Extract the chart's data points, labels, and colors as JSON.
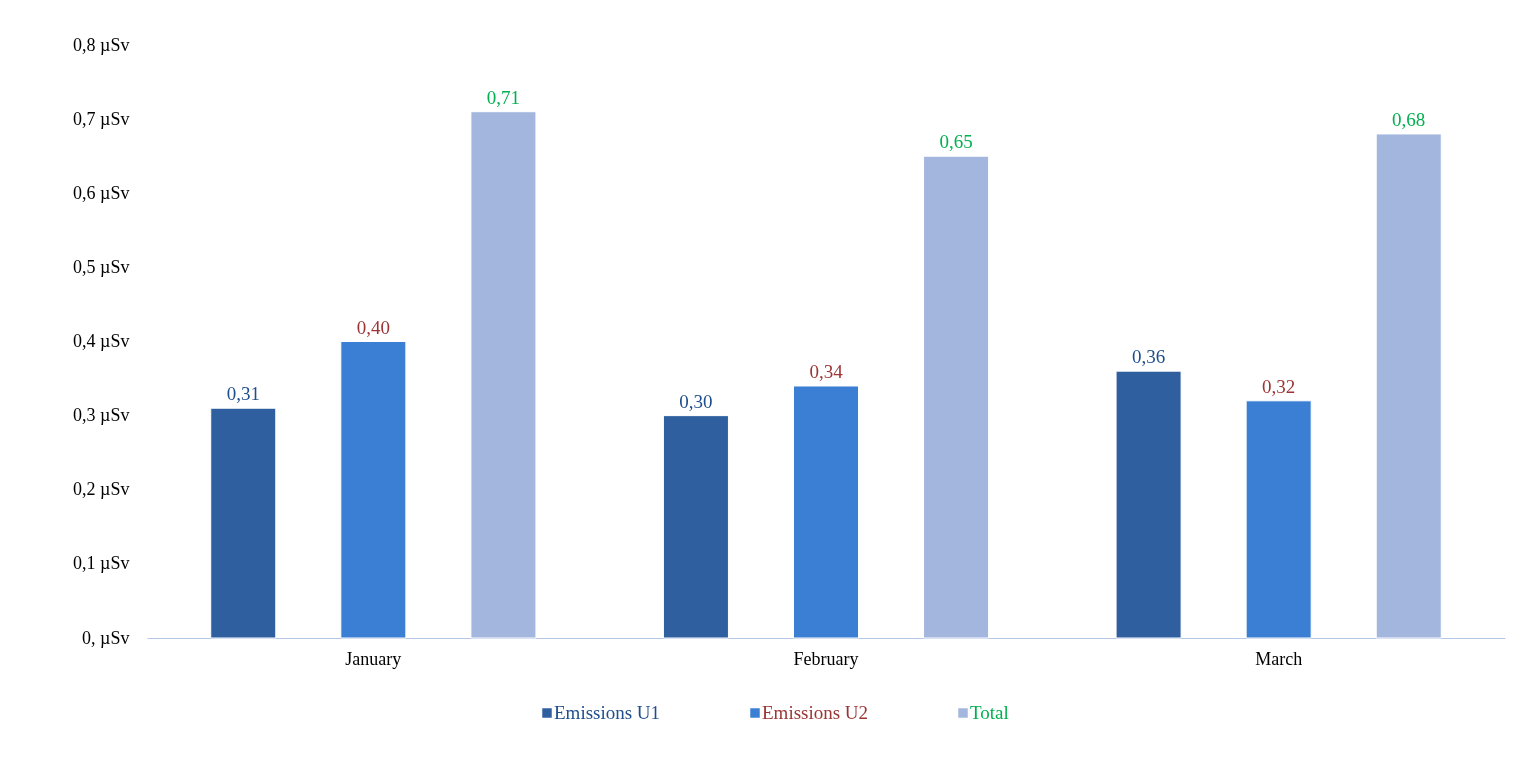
{
  "chart_data": {
    "type": "bar",
    "categories": [
      "January",
      "February",
      "March"
    ],
    "series": [
      {
        "name": "Emissions U1",
        "color": "#2f5f9f",
        "values": [
          0.31,
          0.3,
          0.36
        ],
        "value_labels": [
          "0,31",
          "0,30",
          "0,36"
        ]
      },
      {
        "name": "Emissions U2",
        "color": "#3b7fd4",
        "values": [
          0.4,
          0.34,
          0.32
        ],
        "value_labels": [
          "0,40",
          "0,34",
          "0,32"
        ]
      },
      {
        "name": "Total",
        "color": "#a3b6de",
        "values": [
          0.71,
          0.65,
          0.68
        ],
        "value_labels": [
          "0,71",
          "0,65",
          "0,68"
        ]
      }
    ],
    "ylim": [
      0,
      0.8
    ],
    "yticks": [
      {
        "value": 0,
        "label": "0, µSv"
      },
      {
        "value": 0.1,
        "label": "0,1 µSv"
      },
      {
        "value": 0.2,
        "label": "0,2 µSv"
      },
      {
        "value": 0.3,
        "label": "0,3 µSv"
      },
      {
        "value": 0.4,
        "label": "0,4 µSv"
      },
      {
        "value": 0.5,
        "label": "0,5 µSv"
      },
      {
        "value": 0.6,
        "label": "0,6 µSv"
      },
      {
        "value": 0.7,
        "label": "0,7 µSv"
      },
      {
        "value": 0.8,
        "label": "0,8 µSv"
      }
    ],
    "legend": "bottom"
  }
}
